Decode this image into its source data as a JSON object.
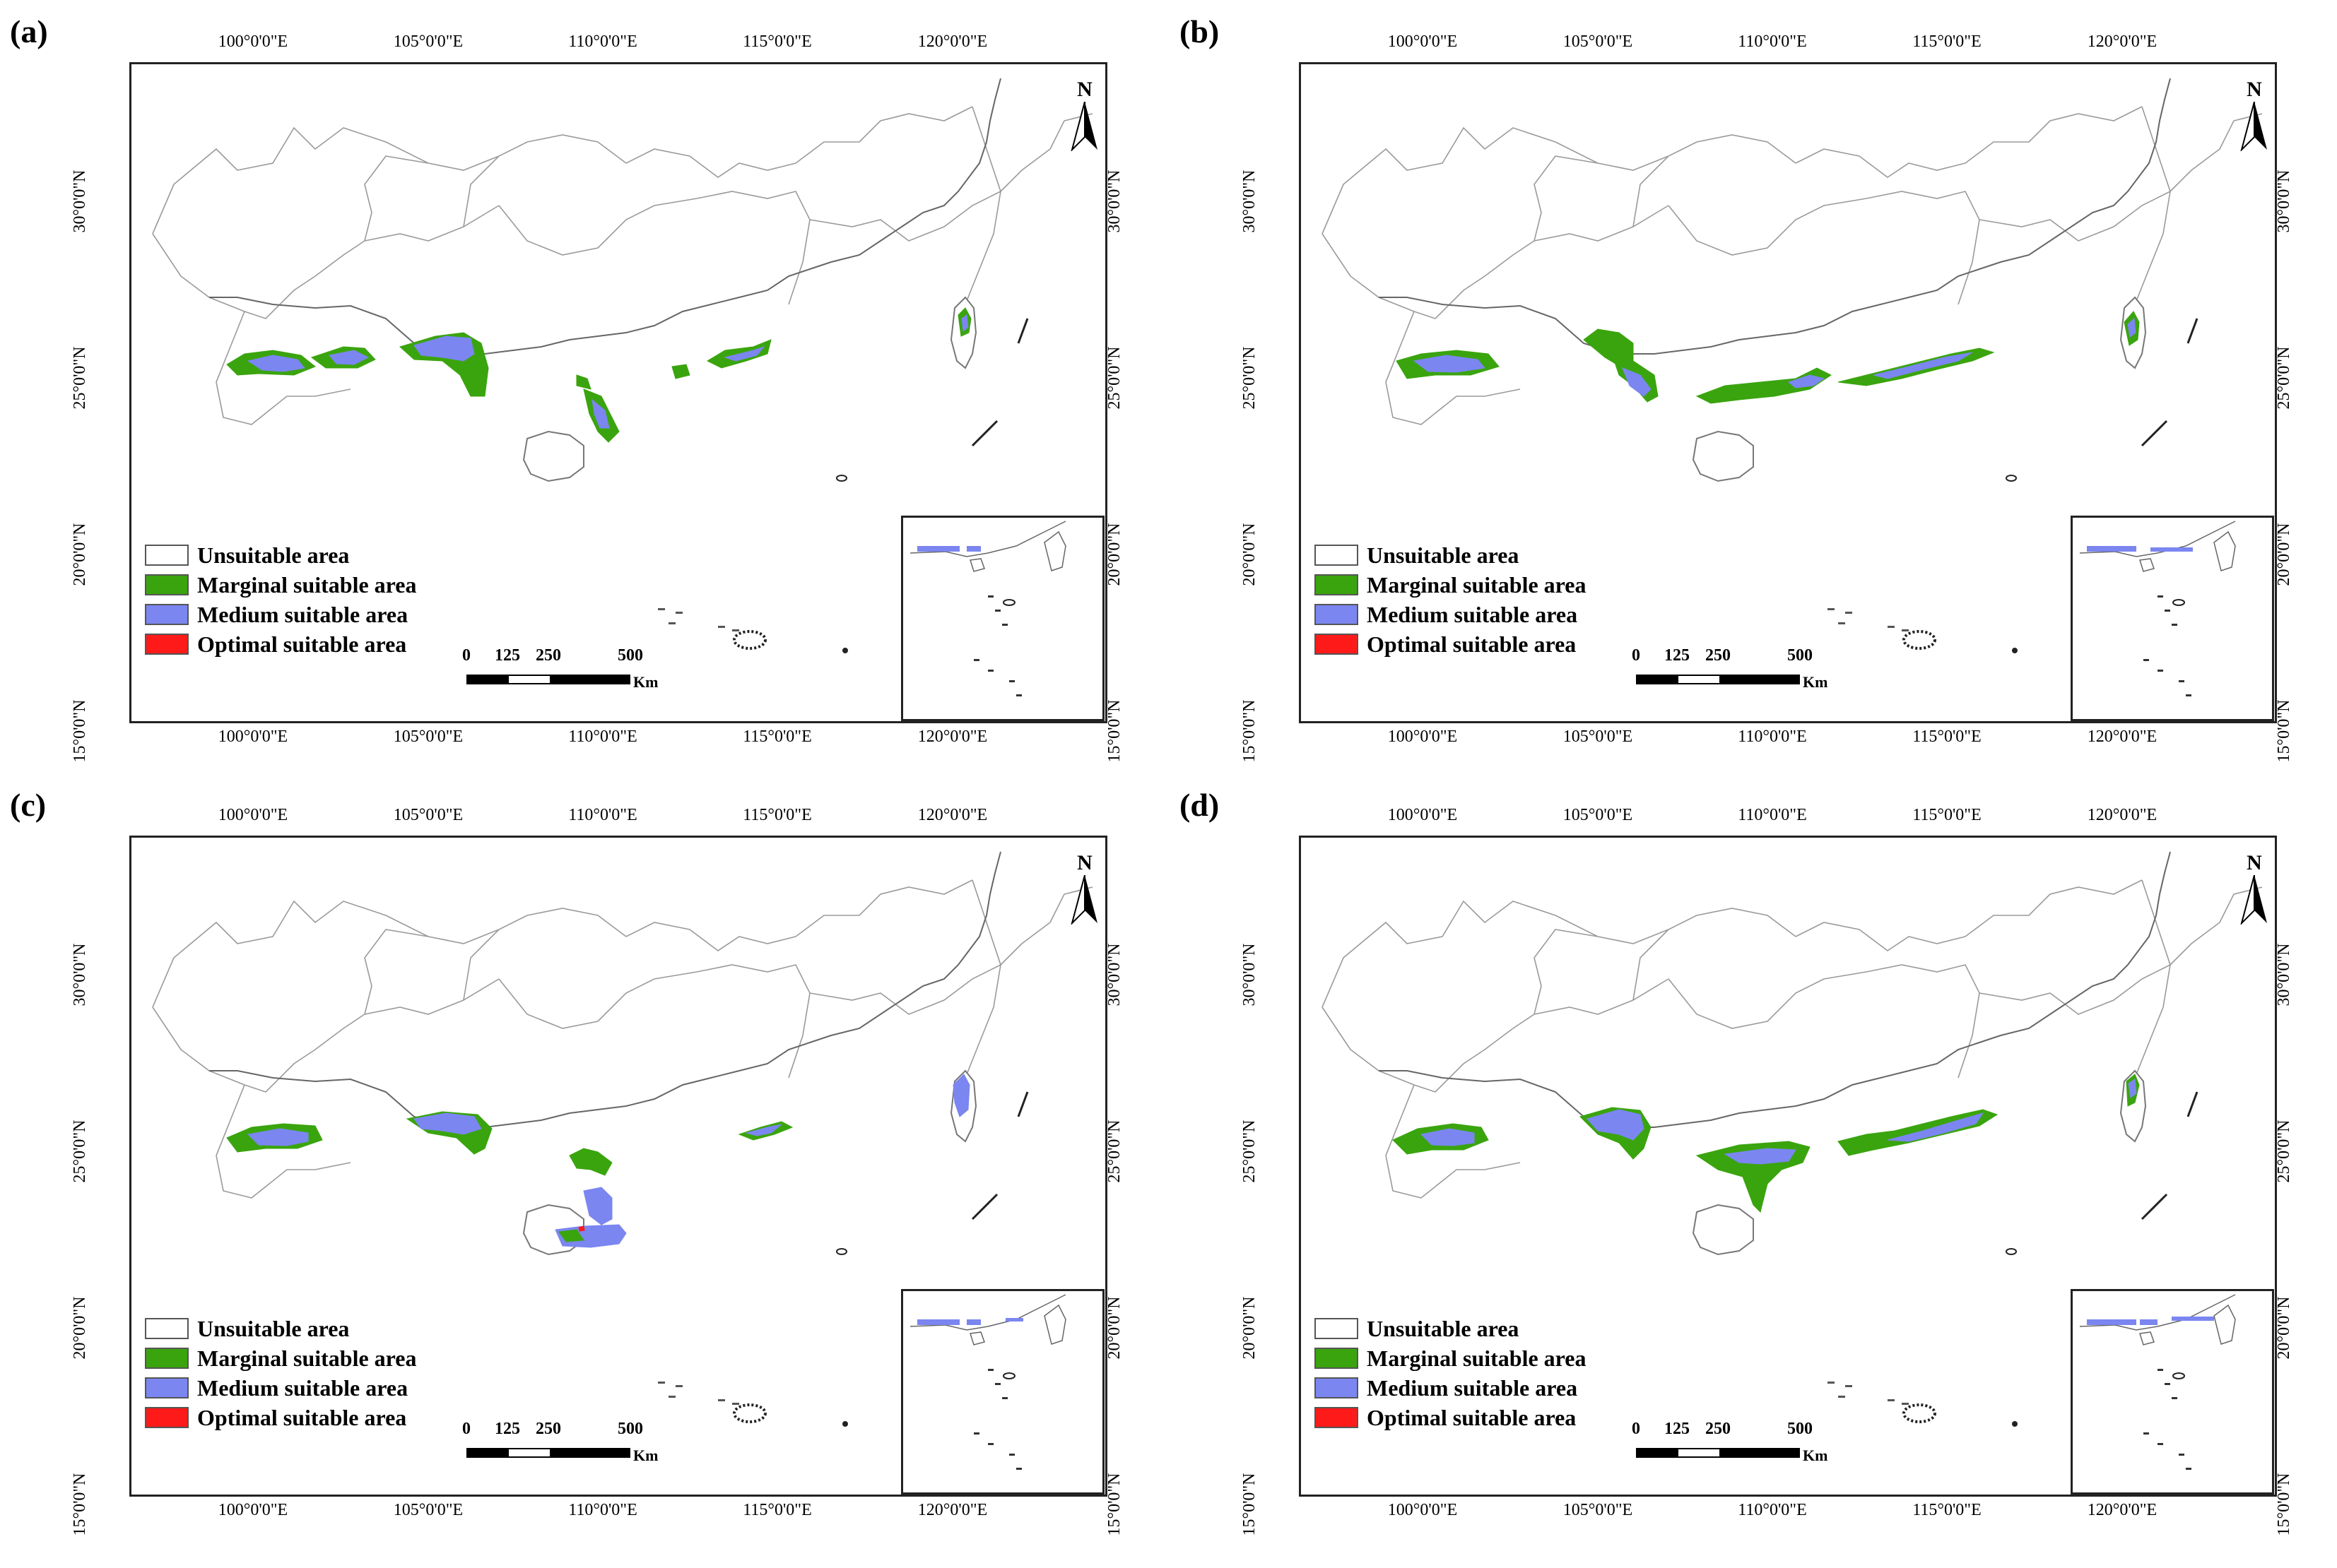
{
  "colors": {
    "unsuitable": "#ffffff",
    "marginal": "#3aa40e",
    "medium": "#7b86f0",
    "optimal": "#ff1a1a",
    "boundary": "#9a9a9a"
  },
  "axes": {
    "lon_ticks": [
      "100°0'0\"E",
      "105°0'0\"E",
      "110°0'0\"E",
      "115°0'0\"E",
      "120°0'0\"E"
    ],
    "lat_ticks": [
      "30°0'0\"N",
      "25°0'0\"N",
      "20°0'0\"N",
      "15°0'0\"N"
    ]
  },
  "legend": [
    {
      "key": "unsuitable",
      "label": "Unsuitable area"
    },
    {
      "key": "marginal",
      "label": "Marginal suitable area"
    },
    {
      "key": "medium",
      "label": "Medium suitable area"
    },
    {
      "key": "optimal",
      "label": "Optimal suitable area"
    }
  ],
  "scale_bar": {
    "labels": [
      "0",
      "125",
      "250",
      "500"
    ],
    "unit": "Km"
  },
  "north_arrow": {
    "label": "N"
  },
  "panels": [
    {
      "label": "(a)",
      "scenario": "a"
    },
    {
      "label": "(b)",
      "scenario": "b"
    },
    {
      "label": "(c)",
      "scenario": "c"
    },
    {
      "label": "(d)",
      "scenario": "d"
    }
  ]
}
